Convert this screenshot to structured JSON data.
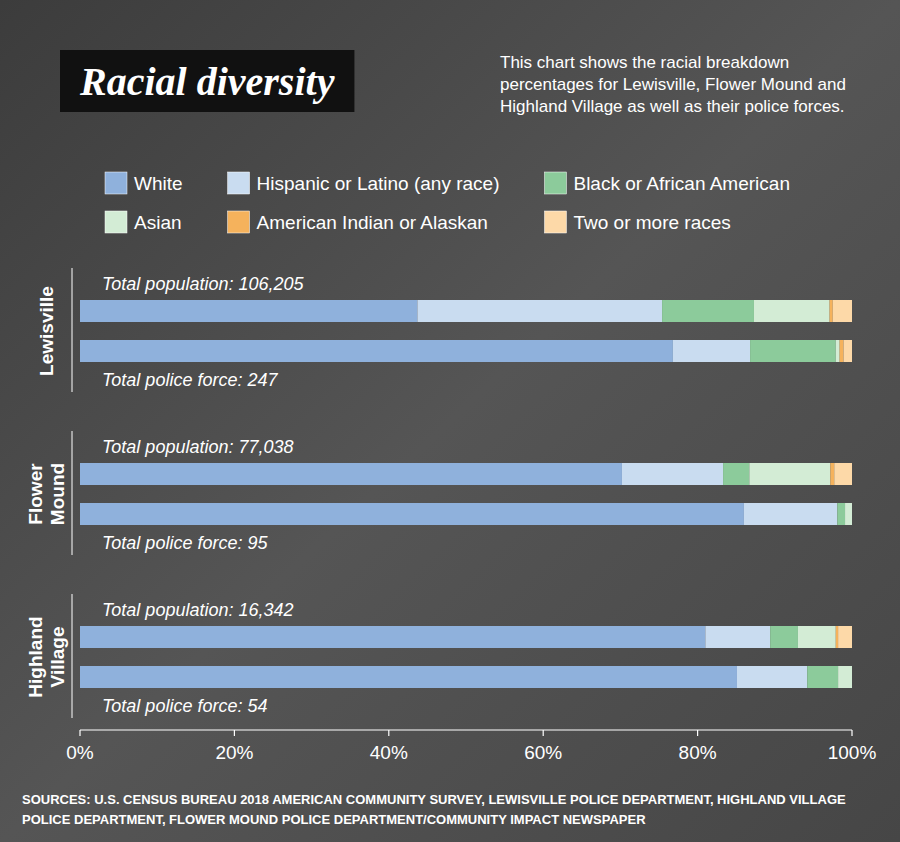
{
  "chart_data": {
    "type": "bar",
    "orientation": "horizontal",
    "stacked": true,
    "title": "Racial diversity",
    "subtitle": "This chart shows the racial breakdown percentages for Lewisville, Flower Mound and Highland Village as well as their police forces.",
    "source": "SOURCES: U.S. CENSUS BUREAU 2018 AMERICAN COMMUNITY SURVEY, LEWISVILLE POLICE DEPARTMENT, HIGHLAND VILLAGE POLICE DEPARTMENT, FLOWER MOUND POLICE DEPARTMENT/COMMUNITY IMPACT NEWSPAPER",
    "legend": "top",
    "groups": [
      "Lewisville",
      "Flower Mound",
      "Highland Village"
    ],
    "categories": [
      "Total population: 106,205",
      "Total police force: 247",
      "Total population: 77,038",
      "Total police force: 95",
      "Total population: 16,342",
      "Total police force: 54"
    ],
    "series": [
      {
        "name": "White",
        "color": "#8fb1dc",
        "values": [
          43.7,
          76.8,
          70.2,
          86.0,
          81.0,
          85.1
        ]
      },
      {
        "name": "Hispanic or Latino (any race)",
        "color": "#c9dcf0",
        "values": [
          31.7,
          10.0,
          13.1,
          12.1,
          8.4,
          9.1
        ]
      },
      {
        "name": "Black or African American",
        "color": "#8ccb9b",
        "values": [
          11.9,
          11.1,
          3.4,
          1.0,
          3.6,
          4.0
        ]
      },
      {
        "name": "Asian",
        "color": "#d3ecd5",
        "values": [
          9.8,
          0.5,
          10.5,
          0.9,
          4.9,
          1.8
        ]
      },
      {
        "name": "American Indian or Alaskan",
        "color": "#f5b25c",
        "values": [
          0.4,
          0.5,
          0.5,
          0,
          0.3,
          0
        ]
      },
      {
        "name": "Two or more races",
        "color": "#fdd9a8",
        "values": [
          2.5,
          1.1,
          2.3,
          0,
          1.8,
          0
        ]
      }
    ],
    "xlim": [
      0,
      100
    ],
    "xticks": [
      {
        "value": 0,
        "label": "0%"
      },
      {
        "value": 20,
        "label": "20%"
      },
      {
        "value": 40,
        "label": "40%"
      },
      {
        "value": 60,
        "label": "60%"
      },
      {
        "value": 80,
        "label": "80%"
      },
      {
        "value": 100,
        "label": "100%"
      }
    ]
  }
}
